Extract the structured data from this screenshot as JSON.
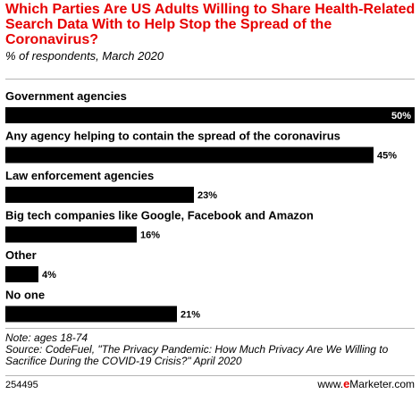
{
  "chart_data": {
    "type": "bar",
    "orientation": "horizontal",
    "title": "Which Parties Are US Adults Willing to Share Health-Related Search Data With to Help Stop the Spread of the Coronavirus?",
    "subtitle": "% of respondents, March 2020",
    "categories": [
      "Government agencies",
      "Any agency helping to contain the spread of the coronavirus",
      "Law enforcement agencies",
      "Big tech companies like Google, Facebook and Amazon",
      "Other",
      "No one"
    ],
    "values": [
      50,
      45,
      23,
      16,
      4,
      21
    ],
    "value_labels": [
      "50%",
      "45%",
      "23%",
      "16%",
      "4%",
      "21%"
    ],
    "xlim": [
      0,
      50
    ],
    "grid": false,
    "bar_color": "#000000"
  },
  "note": "Note: ages 18-74",
  "source": "Source: CodeFuel, \"The Privacy Pandemic: How Much Privacy Are We Willing to Sacrifice During the COVID-19 Crisis?\" April 2020",
  "chart_id": "254495",
  "brand": {
    "www": "www.",
    "e": "e",
    "rest": "Marketer",
    "tld": ".com"
  },
  "colors": {
    "title": "#e60000",
    "bars": "#000000",
    "rules": "#b5b5b5"
  }
}
